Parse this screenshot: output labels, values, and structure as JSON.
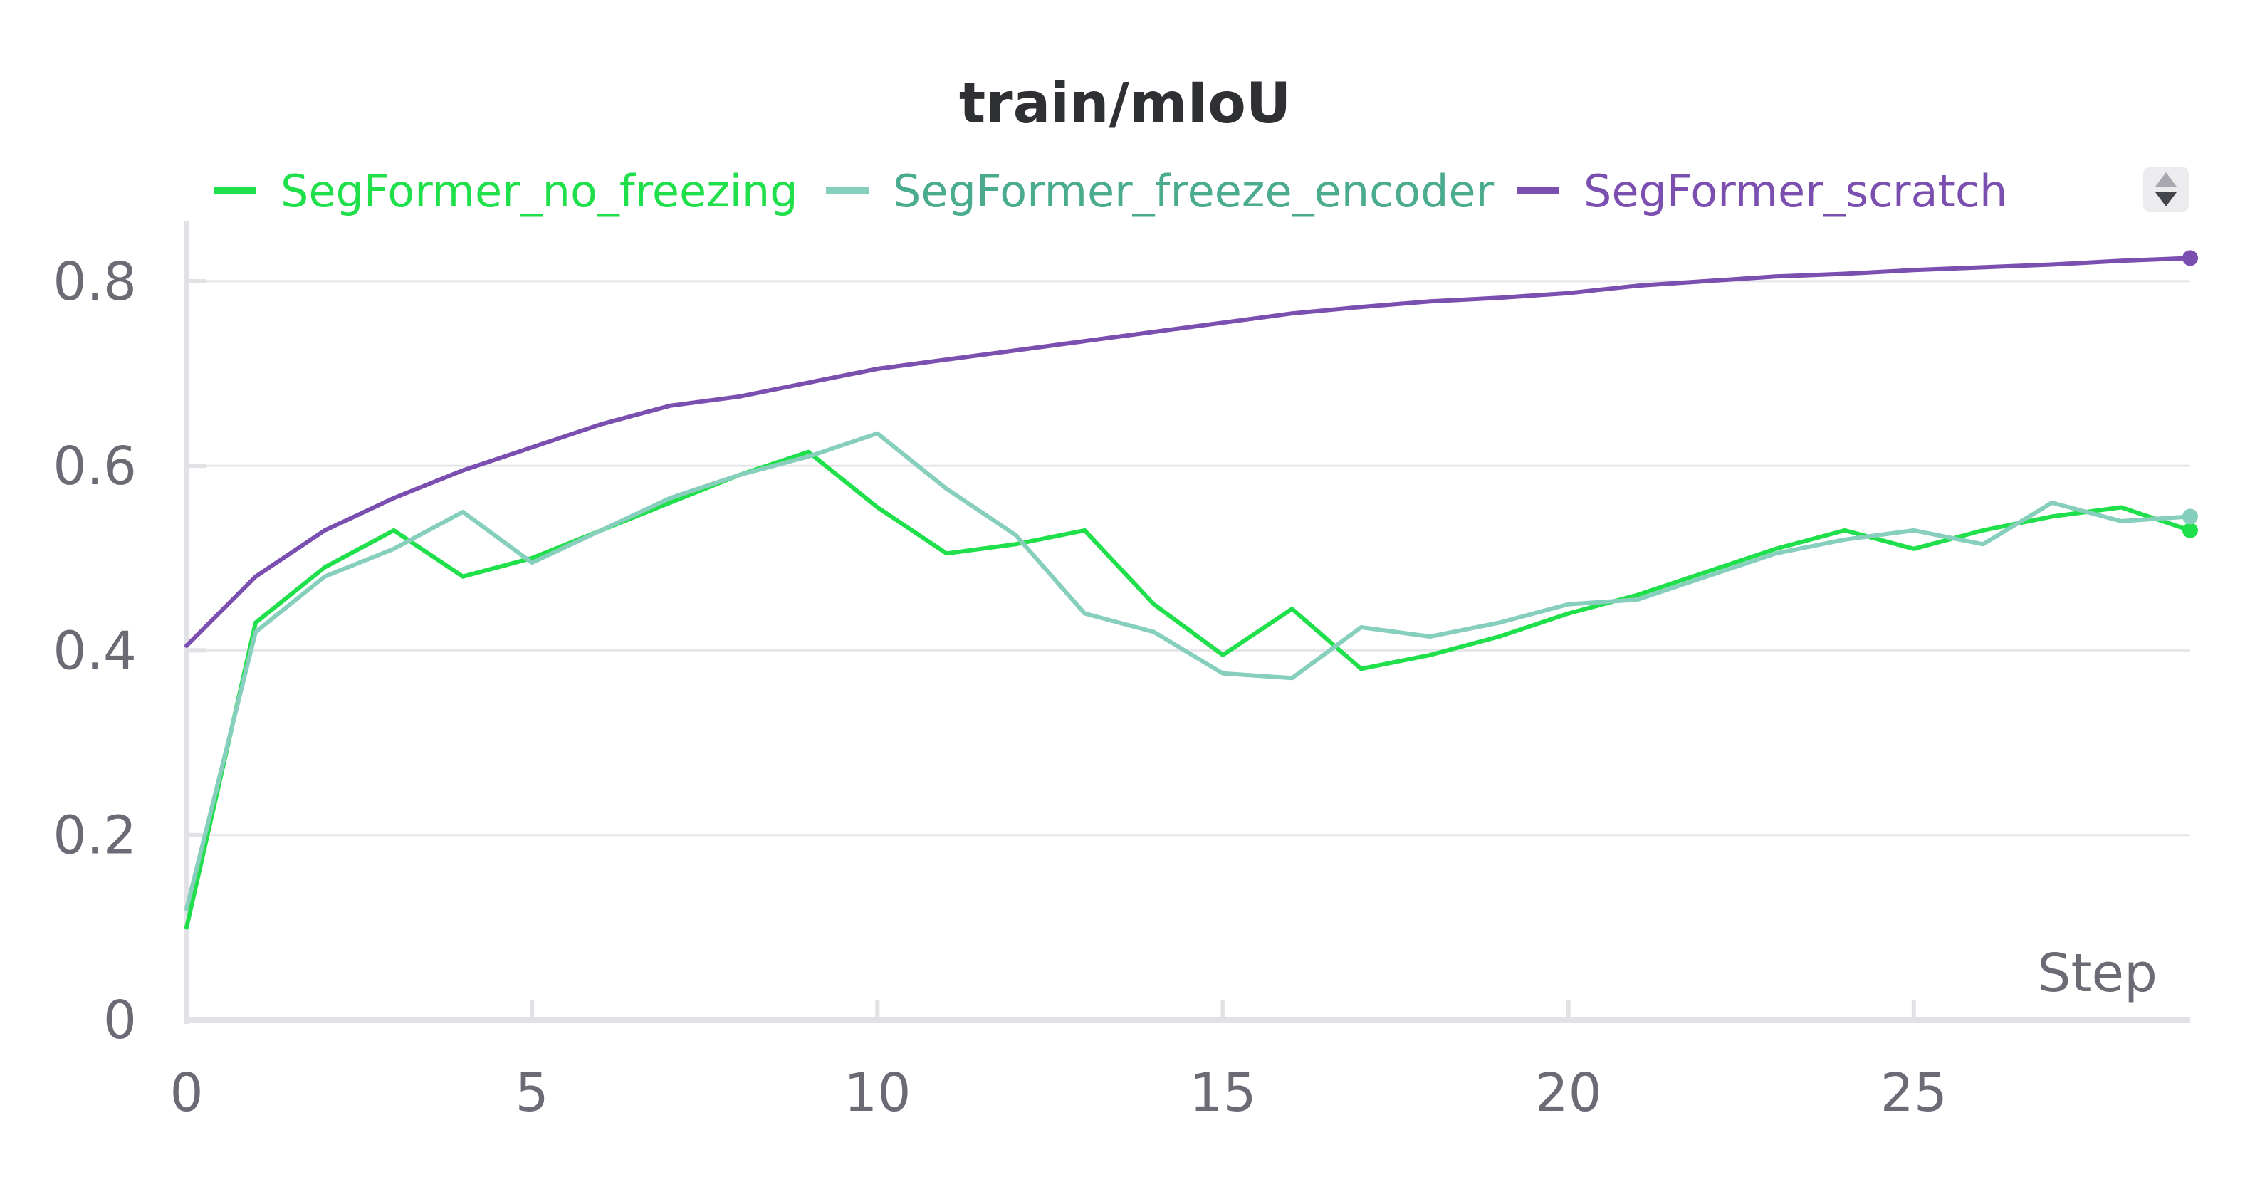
{
  "chart_data": {
    "type": "line",
    "title": "train/mIoU",
    "xlabel": "Step",
    "ylabel": "",
    "xlim": [
      0,
      29
    ],
    "ylim": [
      0,
      0.85
    ],
    "xticks": [
      0,
      5,
      10,
      15,
      20,
      25
    ],
    "yticks": [
      0,
      0.2,
      0.4,
      0.6,
      0.8
    ],
    "ytick_labels": [
      "0",
      "0.2",
      "0.4",
      "0.6",
      "0.8"
    ],
    "grid": true,
    "legend_position": "top",
    "x": [
      0,
      1,
      2,
      3,
      4,
      5,
      6,
      7,
      8,
      9,
      10,
      11,
      12,
      13,
      14,
      15,
      16,
      17,
      18,
      19,
      20,
      21,
      22,
      23,
      24,
      25,
      26,
      27,
      28,
      29
    ],
    "series": [
      {
        "name": "SegFormer_no_freezing",
        "color": "#1fe04b",
        "values": [
          0.1,
          0.43,
          0.49,
          0.53,
          0.48,
          0.5,
          0.53,
          0.56,
          0.59,
          0.615,
          0.555,
          0.505,
          0.515,
          0.53,
          0.45,
          0.395,
          0.445,
          0.38,
          0.395,
          0.415,
          0.44,
          0.46,
          0.485,
          0.51,
          0.53,
          0.51,
          0.53,
          0.545,
          0.555,
          0.53
        ]
      },
      {
        "name": "SegFormer_freeze_encoder",
        "color": "#87cfbd",
        "legend_text_color": "#4aab8e",
        "values": [
          0.12,
          0.42,
          0.48,
          0.51,
          0.55,
          0.495,
          0.53,
          0.565,
          0.59,
          0.61,
          0.635,
          0.575,
          0.525,
          0.44,
          0.42,
          0.375,
          0.37,
          0.425,
          0.415,
          0.43,
          0.45,
          0.455,
          0.48,
          0.505,
          0.52,
          0.53,
          0.515,
          0.56,
          0.54,
          0.545
        ]
      },
      {
        "name": "SegFormer_scratch",
        "color": "#7b4fb0",
        "values": [
          0.405,
          0.48,
          0.53,
          0.565,
          0.595,
          0.62,
          0.645,
          0.665,
          0.675,
          0.69,
          0.705,
          0.715,
          0.725,
          0.735,
          0.745,
          0.755,
          0.765,
          0.772,
          0.778,
          0.782,
          0.787,
          0.795,
          0.8,
          0.805,
          0.808,
          0.812,
          0.815,
          0.818,
          0.822,
          0.825
        ]
      }
    ]
  },
  "ui": {
    "sort_toggle_icon": "sort-up-down-icon"
  }
}
